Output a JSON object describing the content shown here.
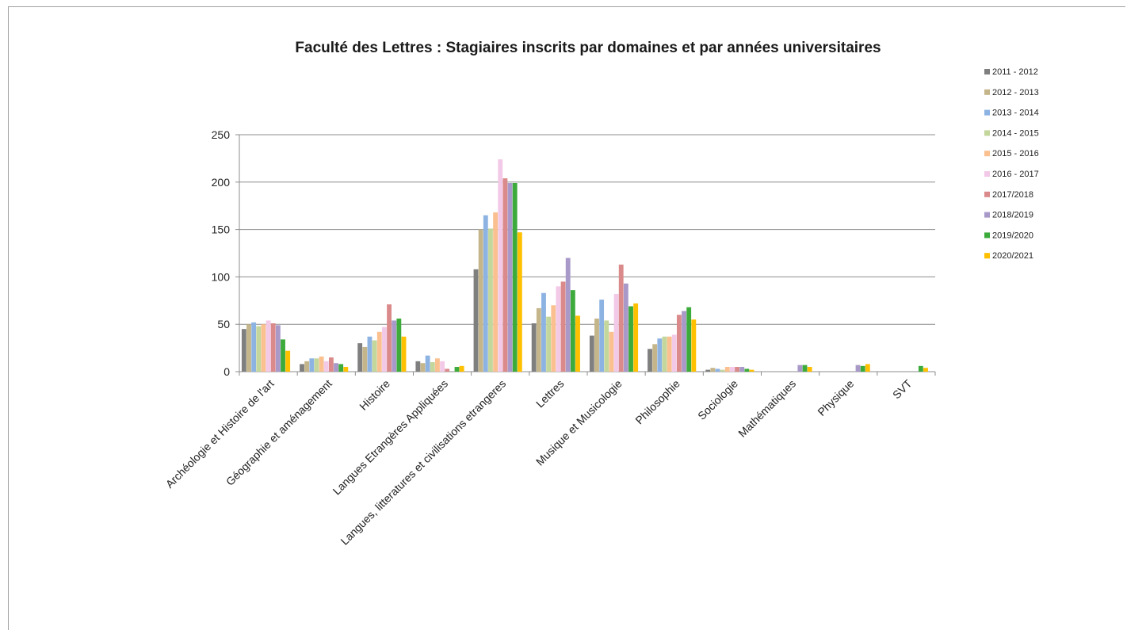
{
  "chart_data": {
    "type": "bar",
    "title": "Faculté des Lettres : Stagiaires inscrits par domaines et par années universitaires",
    "xlabel": "",
    "ylabel": "",
    "ylim": [
      0,
      250
    ],
    "yticks": [
      0,
      50,
      100,
      150,
      200,
      250
    ],
    "grid": true,
    "legend_position": "right",
    "categories": [
      "Archéologie et Histoire de l'art",
      "Géographie et aménagement",
      "Histoire",
      "Langues Etrangères Appliquées",
      "Langues, litteratures et civilisations etrangeres",
      "Lettres",
      "Musique et Musicologie",
      "Philosophie",
      "Sociologie",
      "Mathématiques",
      "Physique",
      "SVT"
    ],
    "series": [
      {
        "name": "2011 - 2012",
        "color": "#7f7f7f",
        "values": [
          45,
          8,
          30,
          11,
          108,
          51,
          38,
          24,
          2,
          0,
          0,
          0
        ]
      },
      {
        "name": "2012 - 2013",
        "color": "#c4b58a",
        "values": [
          50,
          11,
          26,
          9,
          150,
          67,
          56,
          29,
          4,
          0,
          0,
          0
        ]
      },
      {
        "name": "2013 - 2014",
        "color": "#8db3e2",
        "values": [
          52,
          14,
          37,
          17,
          165,
          83,
          76,
          35,
          3,
          0,
          0,
          0
        ]
      },
      {
        "name": "2014 - 2015",
        "color": "#c3d69b",
        "values": [
          48,
          14,
          33,
          10,
          151,
          58,
          54,
          37,
          2,
          0,
          0,
          0
        ]
      },
      {
        "name": "2015 - 2016",
        "color": "#fac08f",
        "values": [
          50,
          16,
          42,
          14,
          168,
          70,
          42,
          37,
          5,
          0,
          0,
          0
        ]
      },
      {
        "name": "2016 - 2017",
        "color": "#f2c9e6",
        "values": [
          54,
          11,
          47,
          11,
          224,
          90,
          82,
          39,
          5,
          0,
          0,
          0
        ]
      },
      {
        "name": "2017/2018",
        "color": "#da8a8a",
        "values": [
          51,
          15,
          71,
          3,
          204,
          95,
          113,
          60,
          5,
          0,
          0,
          0
        ]
      },
      {
        "name": "2018/2019",
        "color": "#a899c9",
        "values": [
          49,
          9,
          54,
          0,
          199,
          120,
          93,
          64,
          5,
          7,
          7,
          0
        ]
      },
      {
        "name": "2019/2020",
        "color": "#3cab3c",
        "values": [
          34,
          8,
          56,
          5,
          199,
          86,
          69,
          68,
          3,
          7,
          6,
          6
        ]
      },
      {
        "name": "2020/2021",
        "color": "#ffc000",
        "values": [
          22,
          5,
          37,
          6,
          147,
          59,
          72,
          55,
          2,
          5,
          8,
          4
        ]
      }
    ]
  }
}
